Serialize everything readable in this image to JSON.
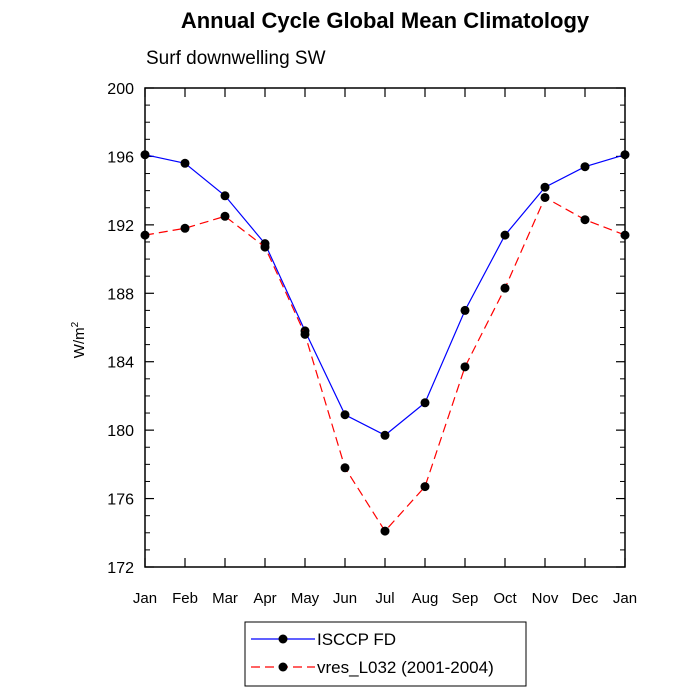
{
  "chart_data": {
    "type": "line",
    "title": "Annual Cycle Global Mean Climatology",
    "subtitle": "Surf downwelling SW",
    "ylabel": "W/m",
    "ylabel_sup": "2",
    "ylim": [
      172,
      200
    ],
    "yticks": [
      172,
      176,
      180,
      184,
      188,
      192,
      196,
      200
    ],
    "categories": [
      "Jan",
      "Feb",
      "Mar",
      "Apr",
      "May",
      "Jun",
      "Jul",
      "Aug",
      "Sep",
      "Oct",
      "Nov",
      "Dec",
      "Jan"
    ],
    "grid": false,
    "legend_position": "bottom-center",
    "series": [
      {
        "name": "ISCCP FD",
        "color": "#0000ff",
        "style": "solid",
        "values": [
          196.1,
          195.6,
          193.7,
          190.9,
          185.8,
          180.9,
          179.7,
          181.6,
          187.0,
          191.4,
          194.2,
          195.4,
          196.1
        ]
      },
      {
        "name": "vres_L032 (2001-2004)",
        "color": "#ff0000",
        "style": "dashed",
        "values": [
          191.4,
          191.8,
          192.5,
          190.7,
          185.6,
          177.8,
          174.1,
          176.7,
          183.7,
          188.3,
          193.6,
          192.3,
          191.4
        ]
      }
    ]
  }
}
